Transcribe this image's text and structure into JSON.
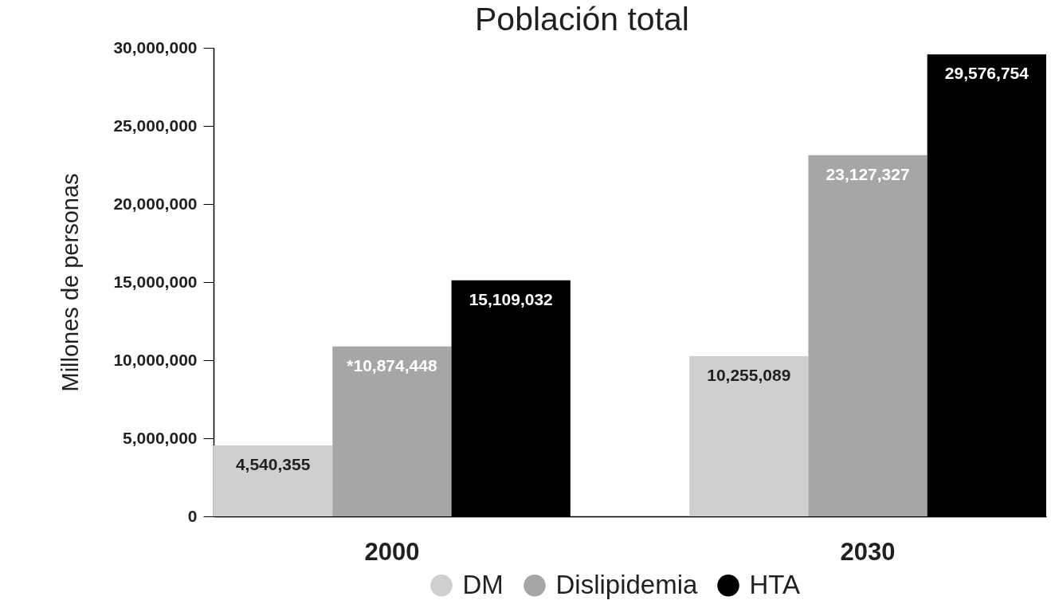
{
  "chart_data": {
    "type": "bar",
    "title": "Población total",
    "ylabel": "Millones de personas",
    "categories": [
      "2000",
      "2030"
    ],
    "series": [
      {
        "name": "DM",
        "color": "#cfcfcf",
        "values": [
          4540355,
          10255089
        ],
        "value_labels": [
          "4,540,355",
          "10,255,089"
        ]
      },
      {
        "name": "Dislipidemia",
        "color": "#a6a6a8",
        "values": [
          10874448,
          23127327
        ],
        "value_labels": [
          "*10,874,448",
          "23,127,327"
        ]
      },
      {
        "name": "HTA",
        "color": "#000000",
        "values": [
          15109032,
          29576754
        ],
        "value_labels": [
          "15,109,032",
          "29,576,754"
        ]
      }
    ],
    "ylim": [
      0,
      30000000
    ],
    "yticks": [
      {
        "value": 0,
        "label": "0"
      },
      {
        "value": 5000000,
        "label": "5,000,000"
      },
      {
        "value": 10000000,
        "label": "10,000,000"
      },
      {
        "value": 15000000,
        "label": "15,000,000"
      },
      {
        "value": 20000000,
        "label": "20,000,000"
      },
      {
        "value": 25000000,
        "label": "25,000,000"
      },
      {
        "value": 30000000,
        "label": "30,000,000"
      }
    ],
    "grid": false,
    "legend": "bottom"
  }
}
